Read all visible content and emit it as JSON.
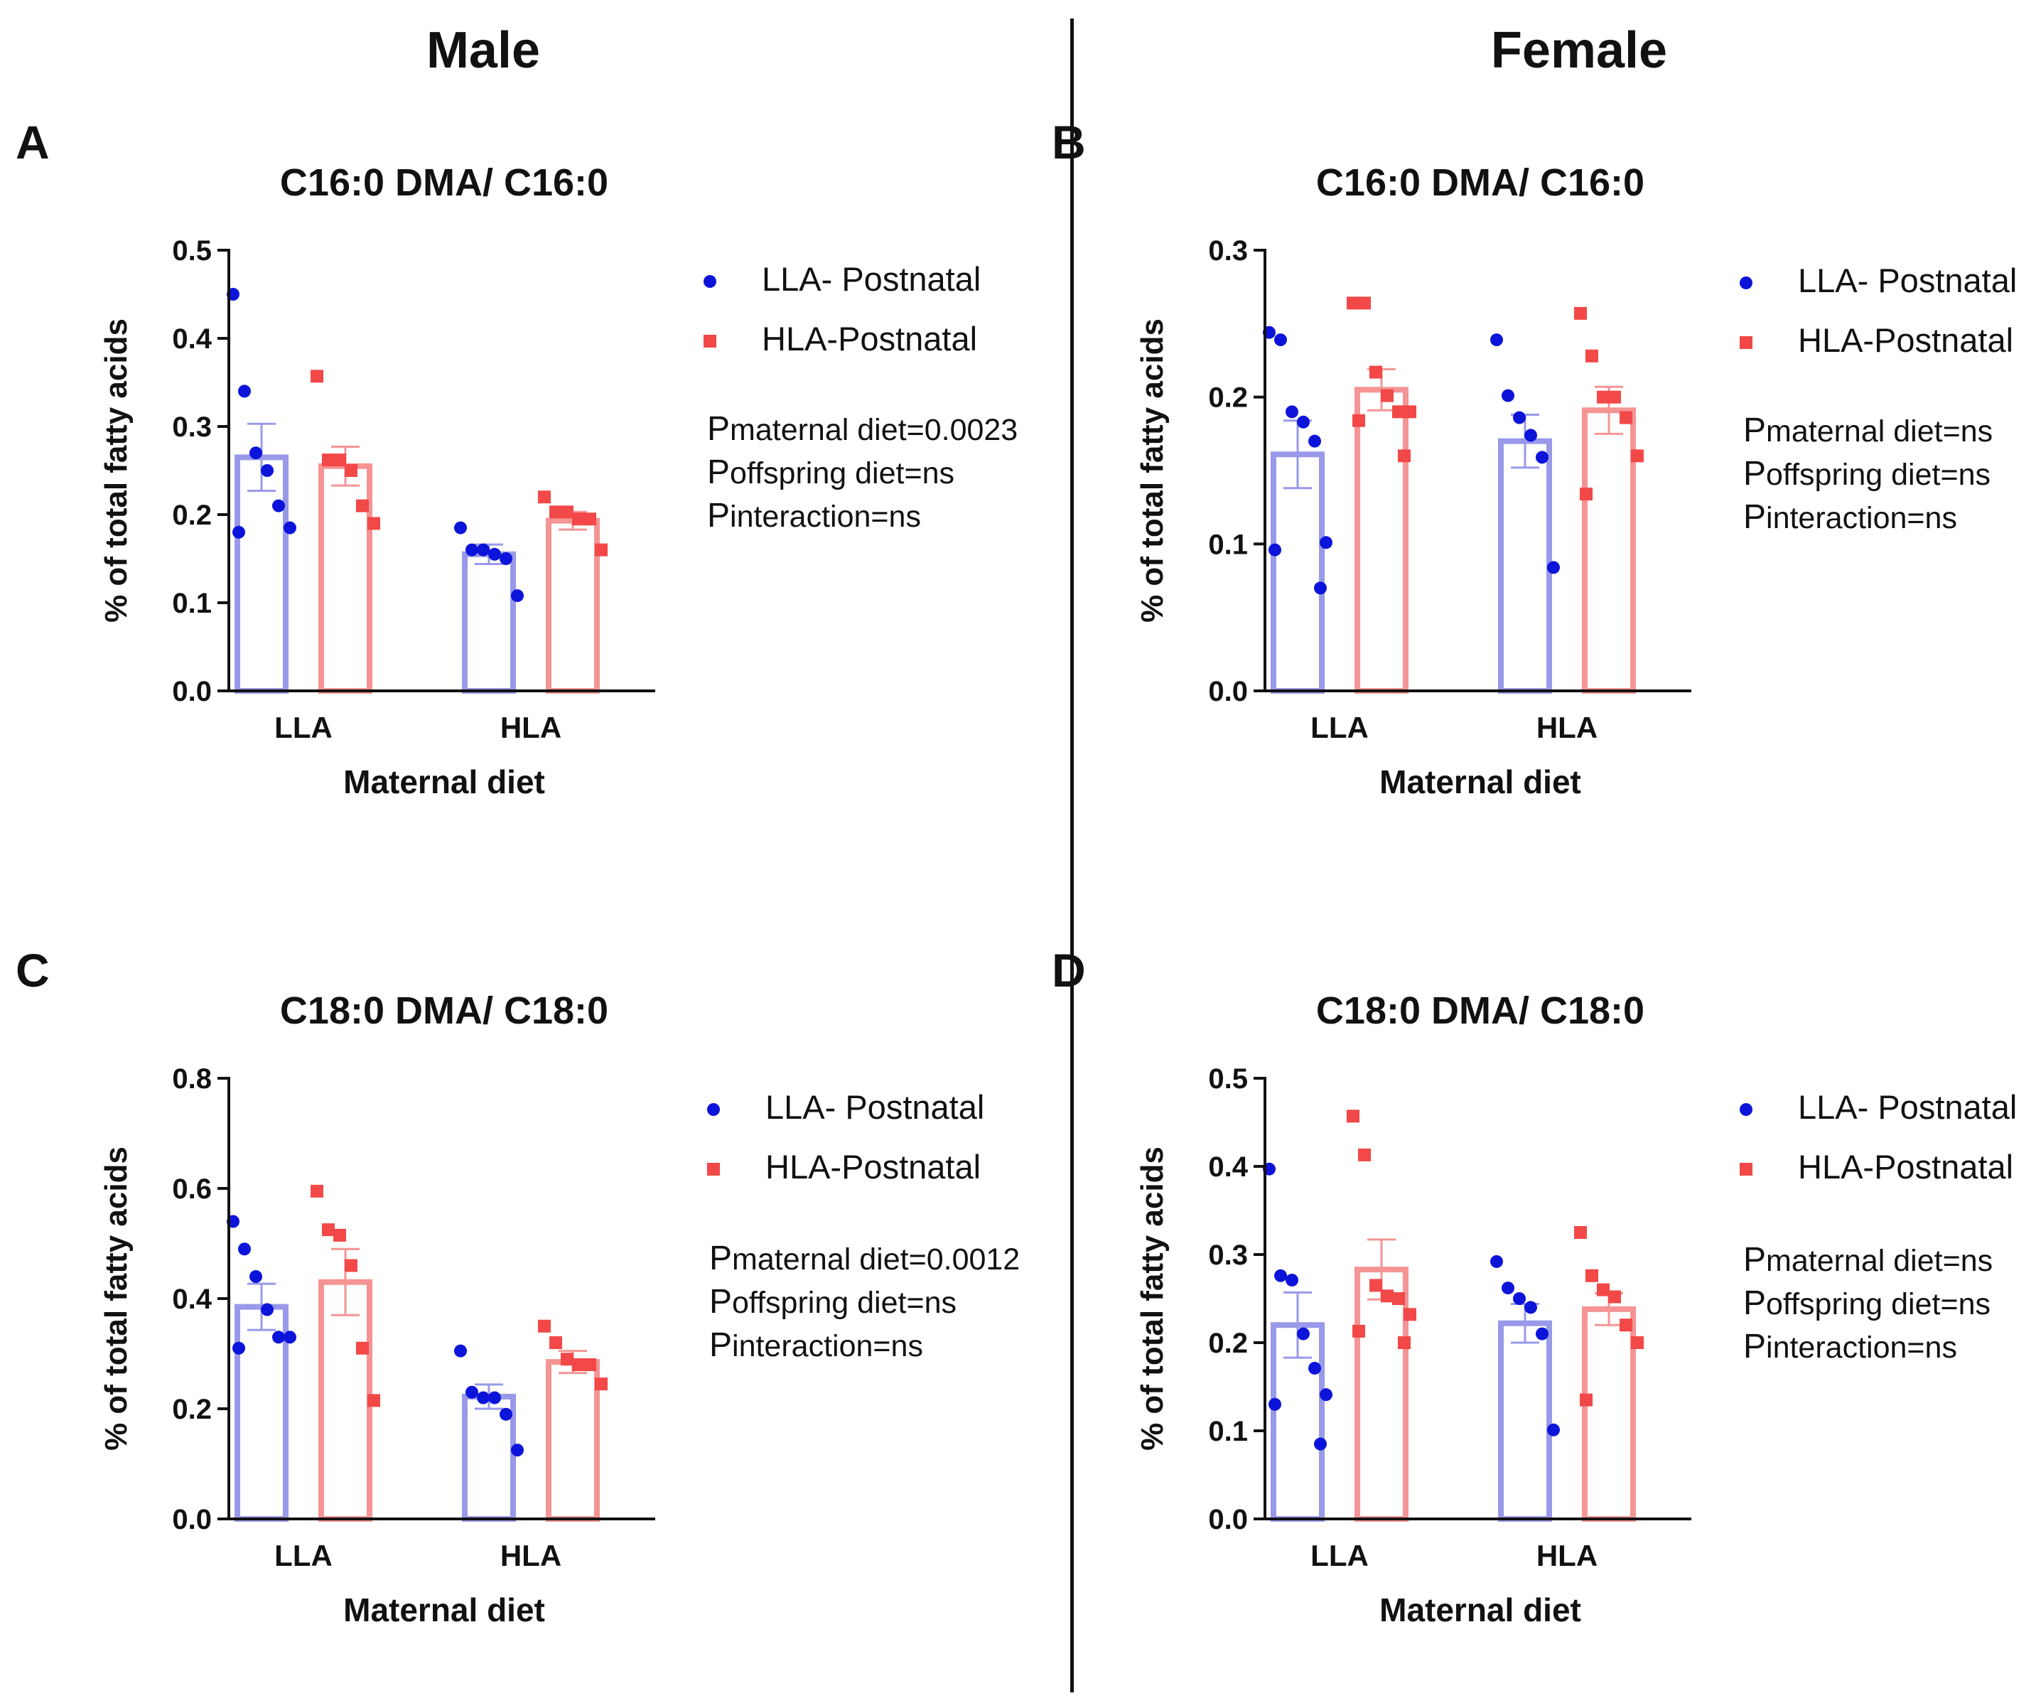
{
  "headers": {
    "male": "Male",
    "female": "Female"
  },
  "legend": {
    "series1": "LLA- Postnatal",
    "series2": "HLA-Postnatal"
  },
  "colors": {
    "series1_bar": "#9999ea",
    "series1_dot": "#0d14d9",
    "series2_bar": "#f59494",
    "series2_dot": "#f24848",
    "axis": "#111111"
  },
  "chart_data": [
    {
      "panel": "A",
      "type": "bar",
      "title": "C16:0 DMA/ C16:0",
      "xlabel": "Maternal diet",
      "ylabel": "% of total fatty acids",
      "categories": [
        "LLA",
        "HLA"
      ],
      "ylim": [
        0,
        0.5
      ],
      "yticks": [
        0.0,
        0.1,
        0.2,
        0.3,
        0.4,
        0.5
      ],
      "series": [
        {
          "name": "LLA- Postnatal",
          "values": [
            0.265,
            0.155
          ],
          "sem": [
            0.038,
            0.011
          ],
          "points": [
            [
              0.45,
              0.34,
              0.27,
              0.25,
              0.21,
              0.185,
              0.18
            ],
            [
              0.185,
              0.16,
              0.16,
              0.155,
              0.15,
              0.108
            ]
          ]
        },
        {
          "name": "HLA-Postnatal",
          "values": [
            0.255,
            0.193
          ],
          "sem": [
            0.022,
            0.01
          ],
          "points": [
            [
              0.357,
              0.262,
              0.262,
              0.25,
              0.21,
              0.19
            ],
            [
              0.22,
              0.203,
              0.203,
              0.195,
              0.195,
              0.16
            ]
          ]
        }
      ],
      "stats": {
        "maternal": "=0.0023",
        "offspring": "=ns",
        "interaction": "=ns"
      }
    },
    {
      "panel": "B",
      "type": "bar",
      "title": "C16:0 DMA/ C16:0",
      "xlabel": "Maternal diet",
      "ylabel": "% of total fatty acids",
      "categories": [
        "LLA",
        "HLA"
      ],
      "ylim": [
        0,
        0.3
      ],
      "yticks": [
        0.0,
        0.1,
        0.2,
        0.3
      ],
      "series": [
        {
          "name": "LLA- Postnatal",
          "values": [
            0.161,
            0.17
          ],
          "sem": [
            0.023,
            0.018
          ],
          "points": [
            [
              0.244,
              0.239,
              0.19,
              0.183,
              0.17,
              0.101,
              0.096,
              0.07
            ],
            [
              0.239,
              0.201,
              0.186,
              0.174,
              0.159,
              0.084
            ]
          ]
        },
        {
          "name": "HLA-Postnatal",
          "values": [
            0.205,
            0.191
          ],
          "sem": [
            0.014,
            0.016
          ],
          "points": [
            [
              0.264,
              0.264,
              0.217,
              0.201,
              0.19,
              0.19,
              0.184,
              0.16
            ],
            [
              0.257,
              0.228,
              0.2,
              0.2,
              0.186,
              0.16,
              0.134
            ]
          ]
        }
      ],
      "stats": {
        "maternal": "=ns",
        "offspring": "=ns",
        "interaction": "=ns"
      }
    },
    {
      "panel": "C",
      "type": "bar",
      "title": "C18:0 DMA/ C18:0",
      "xlabel": "Maternal diet",
      "ylabel": "% of total fatty acids",
      "categories": [
        "LLA",
        "HLA"
      ],
      "ylim": [
        0,
        0.8
      ],
      "yticks": [
        0.0,
        0.2,
        0.4,
        0.6,
        0.8
      ],
      "series": [
        {
          "name": "LLA- Postnatal",
          "values": [
            0.385,
            0.222
          ],
          "sem": [
            0.042,
            0.022
          ],
          "points": [
            [
              0.54,
              0.49,
              0.44,
              0.38,
              0.33,
              0.33,
              0.31
            ],
            [
              0.305,
              0.23,
              0.22,
              0.22,
              0.19,
              0.125
            ]
          ]
        },
        {
          "name": "HLA-Postnatal",
          "values": [
            0.43,
            0.285
          ],
          "sem": [
            0.06,
            0.02
          ],
          "points": [
            [
              0.595,
              0.525,
              0.515,
              0.46,
              0.31,
              0.215
            ],
            [
              0.35,
              0.32,
              0.29,
              0.28,
              0.28,
              0.245
            ]
          ]
        }
      ],
      "stats": {
        "maternal": "=0.0012",
        "offspring": "=ns",
        "interaction": "=ns"
      }
    },
    {
      "panel": "D",
      "type": "bar",
      "title": "C18:0 DMA/ C18:0",
      "xlabel": "Maternal diet",
      "ylabel": "% of total fatty acids",
      "categories": [
        "LLA",
        "HLA"
      ],
      "ylim": [
        0,
        0.5
      ],
      "yticks": [
        0.0,
        0.1,
        0.2,
        0.3,
        0.4,
        0.5
      ],
      "series": [
        {
          "name": "LLA- Postnatal",
          "values": [
            0.22,
            0.222
          ],
          "sem": [
            0.037,
            0.022
          ],
          "points": [
            [
              0.397,
              0.276,
              0.271,
              0.21,
              0.171,
              0.141,
              0.13,
              0.085
            ],
            [
              0.292,
              0.262,
              0.25,
              0.24,
              0.21,
              0.101
            ]
          ]
        },
        {
          "name": "HLA-Postnatal",
          "values": [
            0.283,
            0.238
          ],
          "sem": [
            0.034,
            0.018
          ],
          "points": [
            [
              0.457,
              0.413,
              0.265,
              0.253,
              0.25,
              0.232,
              0.213,
              0.2
            ],
            [
              0.325,
              0.276,
              0.26,
              0.252,
              0.22,
              0.2,
              0.135
            ]
          ]
        }
      ],
      "stats": {
        "maternal": "=ns",
        "offspring": "=ns",
        "interaction": "=ns"
      }
    }
  ]
}
